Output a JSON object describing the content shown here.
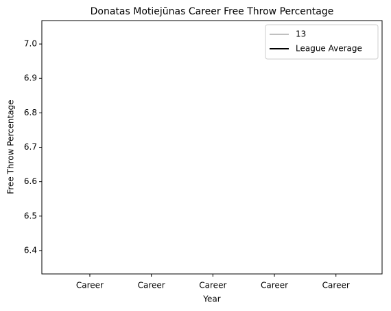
{
  "chart_data": {
    "type": "line",
    "title": "Donatas Motiejūnas Career Free Throw Percentage",
    "xlabel": "Year",
    "ylabel": "Free Throw Percentage",
    "categories": [
      "Career",
      "Career",
      "Career",
      "Career",
      "Career"
    ],
    "series": [
      {
        "name": "13",
        "color": "#c0c0c0",
        "values": [
          null,
          null,
          null,
          null,
          null
        ]
      },
      {
        "name": "League Average",
        "color": "#000000",
        "values": [
          null,
          null,
          null,
          null,
          null
        ]
      }
    ],
    "ylim": [
      6.332,
      7.068
    ],
    "yticks": [
      6.4,
      6.5,
      6.6,
      6.7,
      6.8,
      6.9,
      {
        "value": 7,
        "label": "7.0"
      }
    ],
    "legend": "upper right"
  }
}
